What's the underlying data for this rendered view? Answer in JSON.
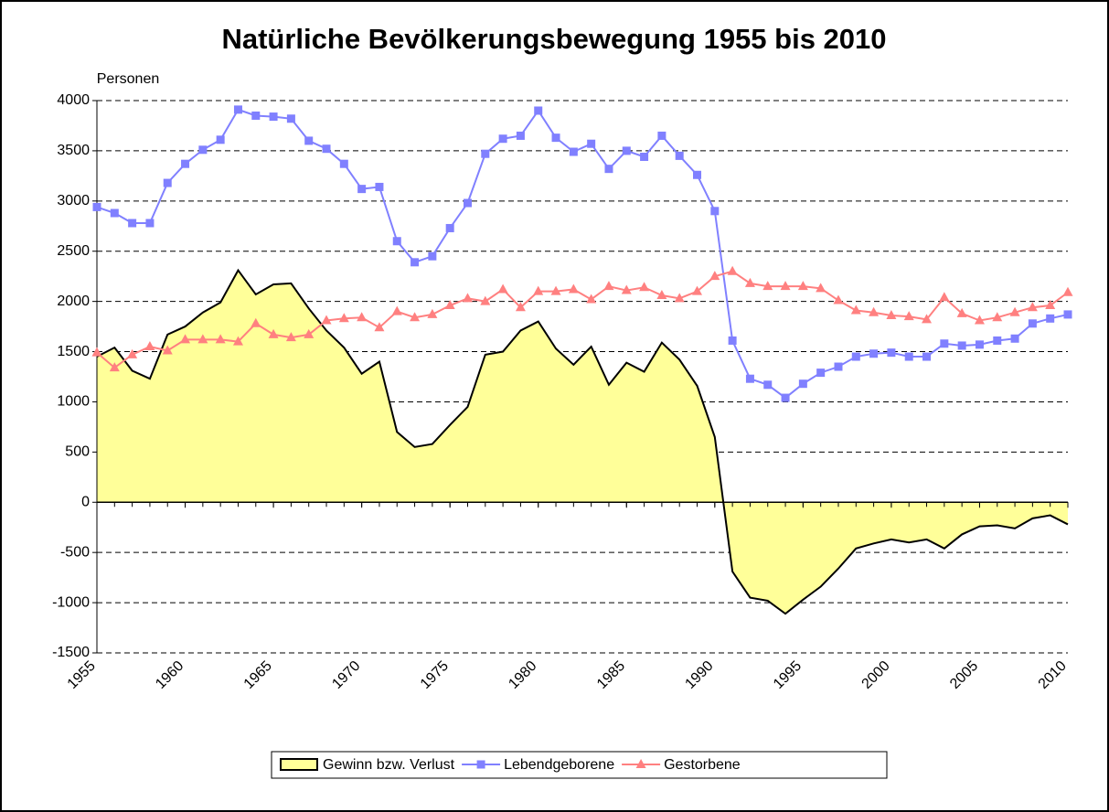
{
  "chart_data": {
    "type": "line",
    "title": "Natürliche Bevölkerungsbewegung 1955 bis 2010",
    "y_label": "Personen",
    "x": [
      1955,
      1956,
      1957,
      1958,
      1959,
      1960,
      1961,
      1962,
      1963,
      1964,
      1965,
      1966,
      1967,
      1968,
      1969,
      1970,
      1971,
      1972,
      1973,
      1974,
      1975,
      1976,
      1977,
      1978,
      1979,
      1980,
      1981,
      1982,
      1983,
      1984,
      1985,
      1986,
      1987,
      1988,
      1989,
      1990,
      1991,
      1992,
      1993,
      1994,
      1995,
      1996,
      1997,
      1998,
      1999,
      2000,
      2001,
      2002,
      2003,
      2004,
      2005,
      2006,
      2007,
      2008,
      2009,
      2010
    ],
    "series": [
      {
        "name": "Gewinn bzw. Verlust",
        "color": "#ffff99",
        "area": true,
        "values": [
          1450,
          1540,
          1310,
          1230,
          1670,
          1750,
          1890,
          1990,
          2310,
          2070,
          2170,
          2180,
          1930,
          1710,
          1540,
          1280,
          1400,
          700,
          550,
          580,
          770,
          950,
          1470,
          1500,
          1710,
          1800,
          1530,
          1370,
          1550,
          1170,
          1390,
          1300,
          1590,
          1420,
          1160,
          650,
          -690,
          -950,
          -980,
          -1110,
          -970,
          -840,
          -660,
          -460,
          -410,
          -370,
          -400,
          -370,
          -460,
          -320,
          -240,
          -230,
          -260,
          -160,
          -130,
          -220
        ]
      },
      {
        "name": "Lebendgeborene",
        "color": "#8080ff",
        "marker": "square",
        "values": [
          2940,
          2880,
          2780,
          2780,
          3180,
          3370,
          3510,
          3610,
          3910,
          3850,
          3840,
          3820,
          3600,
          3520,
          3370,
          3120,
          3140,
          2600,
          2390,
          2450,
          2730,
          2980,
          3470,
          3620,
          3650,
          3900,
          3630,
          3490,
          3570,
          3320,
          3500,
          3440,
          3650,
          3450,
          3260,
          2900,
          1610,
          1230,
          1170,
          1040,
          1180,
          1290,
          1350,
          1450,
          1480,
          1490,
          1450,
          1450,
          1580,
          1560,
          1570,
          1610,
          1630,
          1780,
          1830,
          1870
        ]
      },
      {
        "name": "Gestorbene",
        "color": "#ff8080",
        "marker": "triangle",
        "values": [
          1490,
          1340,
          1470,
          1550,
          1510,
          1620,
          1620,
          1620,
          1600,
          1780,
          1670,
          1640,
          1670,
          1810,
          1830,
          1840,
          1740,
          1900,
          1840,
          1870,
          1960,
          2030,
          2000,
          2120,
          1940,
          2100,
          2100,
          2120,
          2020,
          2150,
          2110,
          2140,
          2060,
          2030,
          2100,
          2250,
          2300,
          2180,
          2150,
          2150,
          2150,
          2130,
          2010,
          1910,
          1890,
          1860,
          1850,
          1820,
          2040,
          1880,
          1810,
          1840,
          1890,
          1940,
          1960,
          2090
        ]
      }
    ],
    "xlim": [
      1955,
      2010
    ],
    "xticks": [
      1955,
      1960,
      1965,
      1970,
      1975,
      1980,
      1985,
      1990,
      1995,
      2000,
      2005,
      2010
    ],
    "ylim": [
      -1500,
      4000
    ],
    "yticks": [
      -1500,
      -1000,
      -500,
      0,
      500,
      1000,
      1500,
      2000,
      2500,
      3000,
      3500,
      4000
    ],
    "grid": true,
    "legend": "bottom"
  }
}
